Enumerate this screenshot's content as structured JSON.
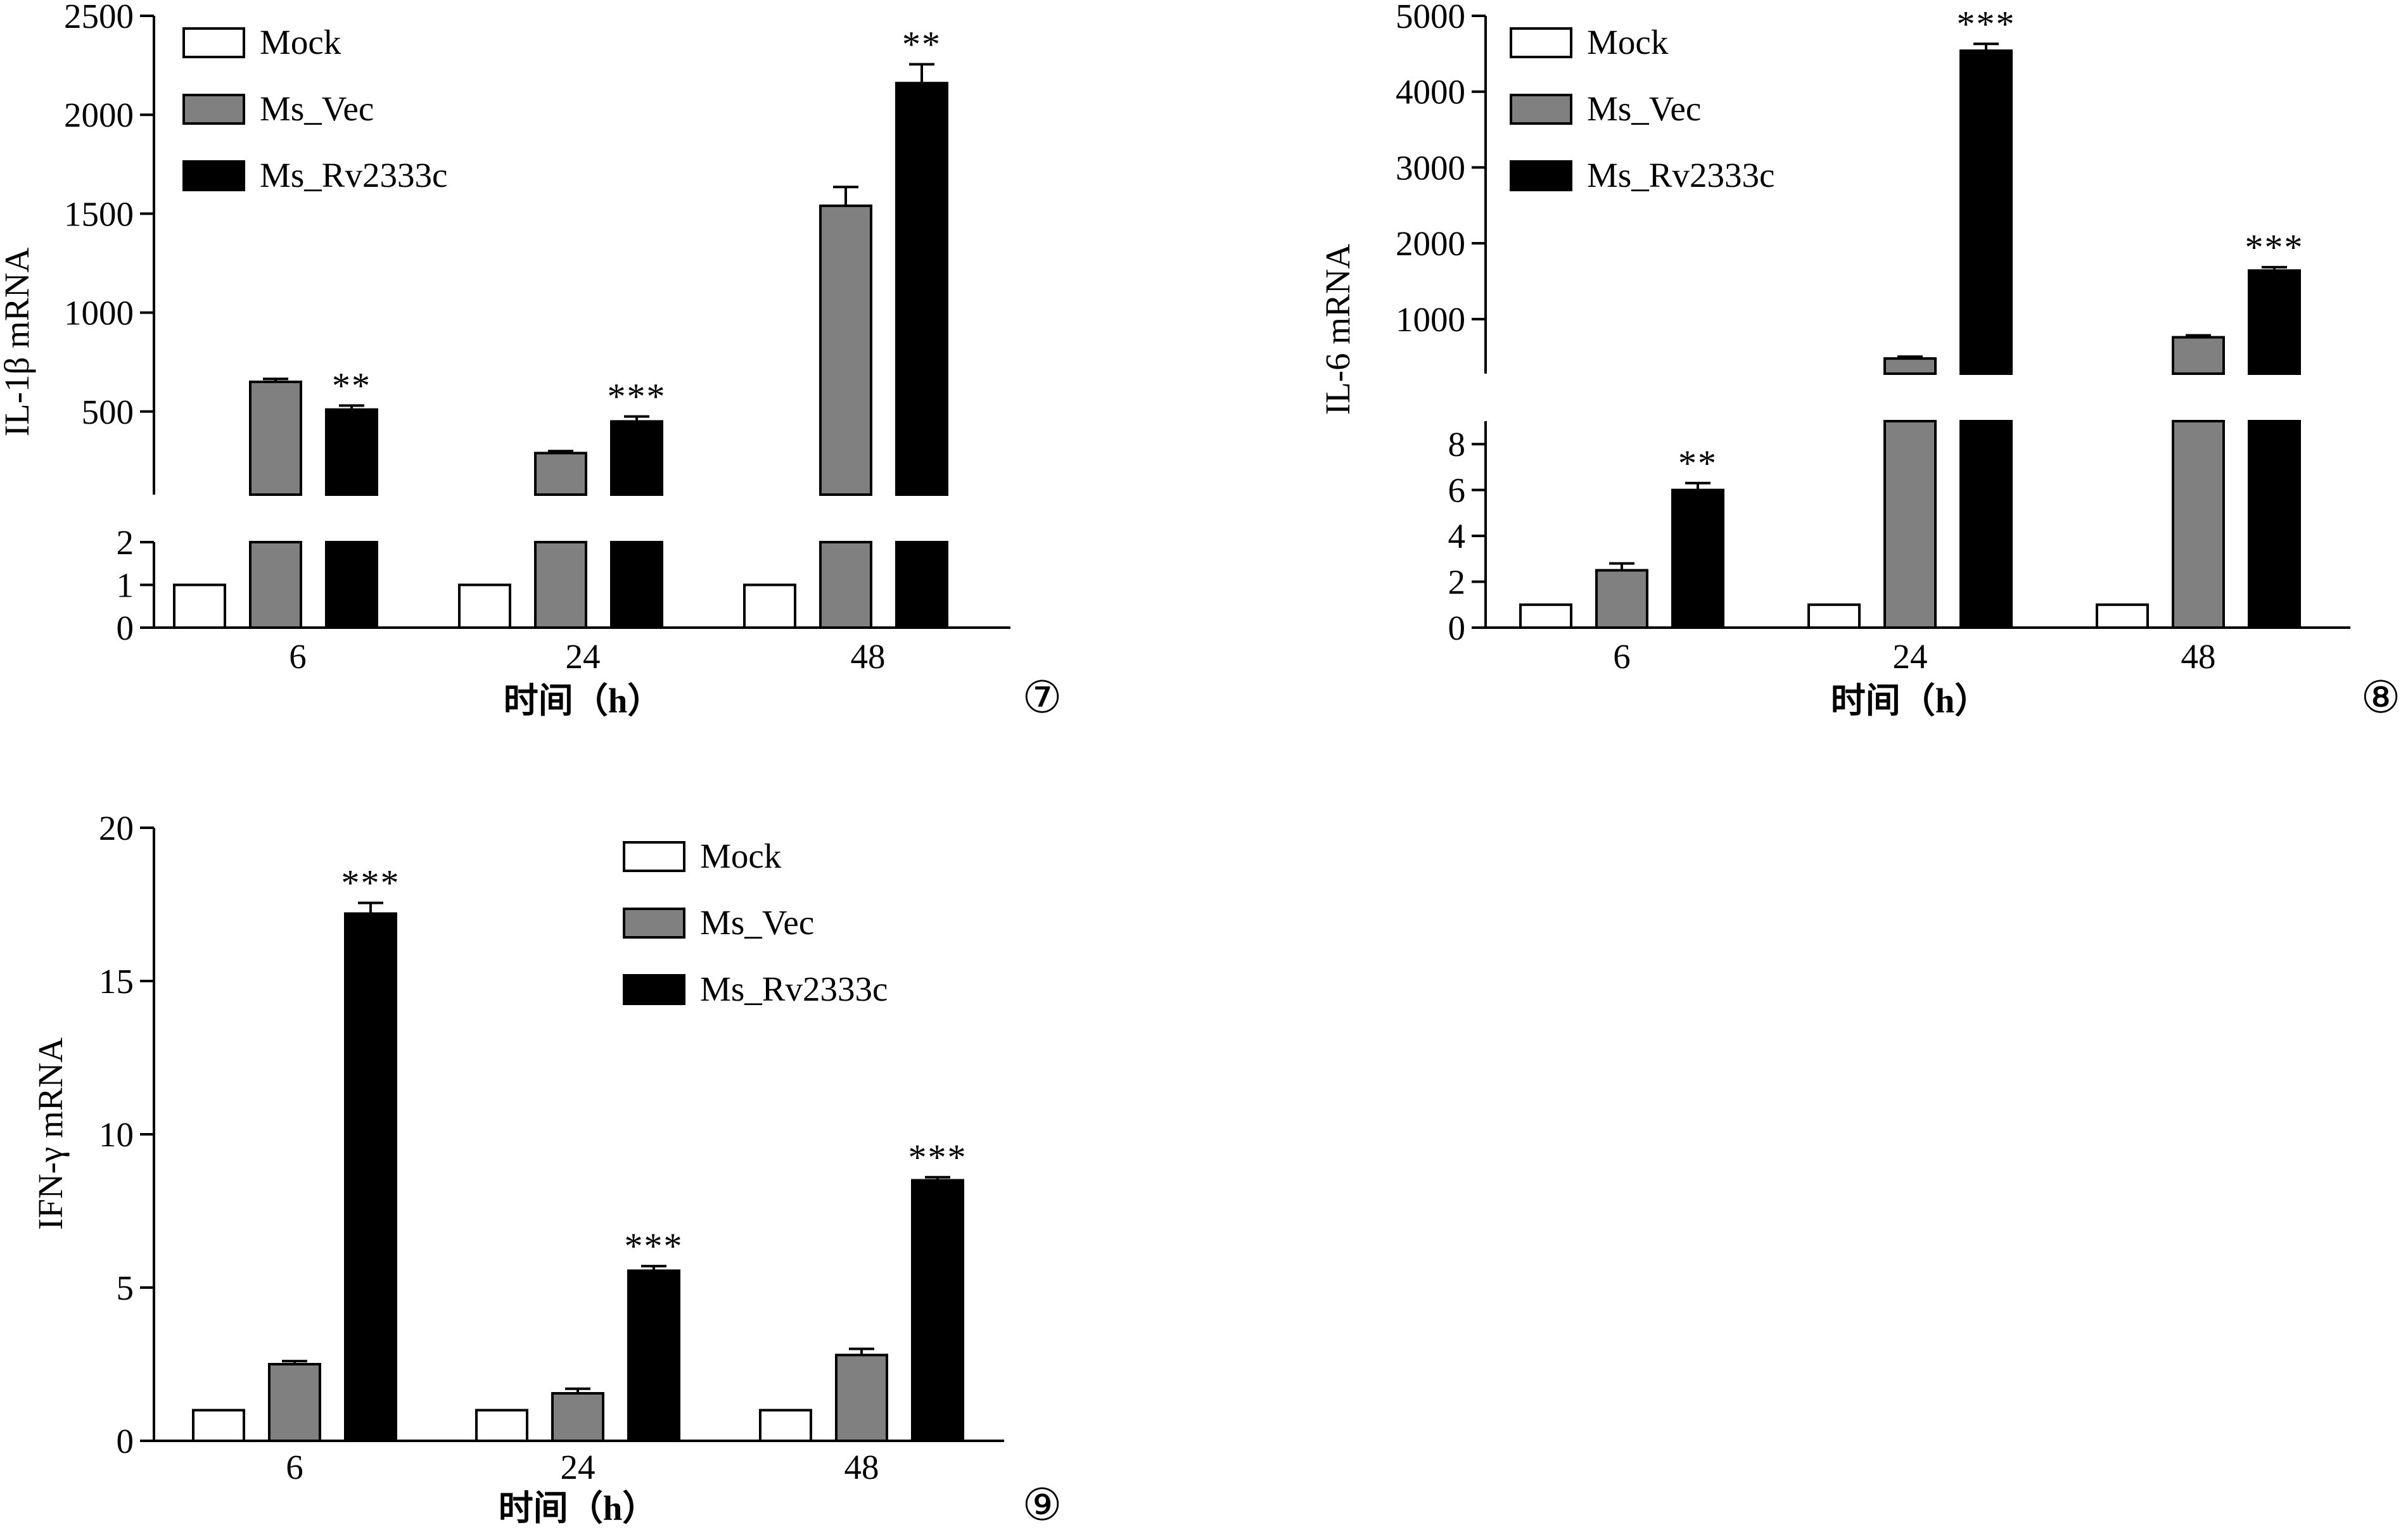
{
  "chart_data": [
    {
      "id": "7",
      "type": "bar",
      "panel_label": "⑦",
      "ylabel": "IL-1β mRNA",
      "xlabel": "时间（h）",
      "categories": [
        "6",
        "24",
        "48"
      ],
      "broken_axis": true,
      "lower_ylim": [
        0,
        2
      ],
      "lower_ticks": [
        "0",
        "1",
        "2"
      ],
      "upper_ylim": [
        80,
        2500
      ],
      "upper_ticks": [
        "500",
        "1000",
        "1500",
        "2000",
        "2500"
      ],
      "series": [
        {
          "name": "Mock",
          "color": "#ffffff",
          "values": [
            1,
            1,
            1
          ],
          "errors": [
            0,
            0,
            0
          ]
        },
        {
          "name": "Ms_Vec",
          "color": "#808080",
          "values": [
            650,
            290,
            1540
          ],
          "errors": [
            15,
            10,
            95
          ]
        },
        {
          "name": "Ms_Rv2333c",
          "color": "#000000",
          "values": [
            510,
            450,
            2160
          ],
          "errors": [
            20,
            25,
            95
          ]
        }
      ],
      "annotations": [
        {
          "series": 2,
          "category": 0,
          "text": "**"
        },
        {
          "series": 2,
          "category": 1,
          "text": "***"
        },
        {
          "series": 2,
          "category": 2,
          "text": "**"
        }
      ],
      "legend": [
        "Mock",
        "Ms_Vec",
        "Ms_Rv2333c"
      ],
      "legend_position": "top-left"
    },
    {
      "id": "8",
      "type": "bar",
      "panel_label": "⑧",
      "ylabel": "IL-6 mRNA",
      "xlabel": "时间（h）",
      "categories": [
        "6",
        "24",
        "48"
      ],
      "broken_axis": true,
      "lower_ylim": [
        0,
        9
      ],
      "lower_ticks": [
        "0",
        "2",
        "4",
        "6",
        "8"
      ],
      "upper_ylim": [
        280,
        5000
      ],
      "upper_ticks": [
        "1000",
        "2000",
        "3000",
        "4000",
        "5000"
      ],
      "series": [
        {
          "name": "Mock",
          "color": "#ffffff",
          "values": [
            1,
            1,
            1
          ],
          "errors": [
            0,
            0,
            0
          ]
        },
        {
          "name": "Ms_Vec",
          "color": "#808080",
          "values": [
            2.5,
            480,
            760
          ],
          "errors": [
            0.3,
            25,
            25
          ]
        },
        {
          "name": "Ms_Rv2333c",
          "color": "#000000",
          "values": [
            6,
            4540,
            1640
          ],
          "errors": [
            0.3,
            90,
            45
          ]
        }
      ],
      "annotations": [
        {
          "series": 2,
          "category": 0,
          "text": "**"
        },
        {
          "series": 2,
          "category": 1,
          "text": "***"
        },
        {
          "series": 2,
          "category": 2,
          "text": "***"
        }
      ],
      "legend": [
        "Mock",
        "Ms_Vec",
        "Ms_Rv2333c"
      ],
      "legend_position": "top-left"
    },
    {
      "id": "9",
      "type": "bar",
      "panel_label": "⑨",
      "ylabel": "IFN-γ mRNA",
      "xlabel": "时间（h）",
      "categories": [
        "6",
        "24",
        "48"
      ],
      "broken_axis": false,
      "ylim": [
        0,
        20
      ],
      "yticks": [
        "0",
        "5",
        "10",
        "15",
        "20"
      ],
      "series": [
        {
          "name": "Mock",
          "color": "#ffffff",
          "values": [
            1,
            1,
            1
          ],
          "errors": [
            0,
            0,
            0
          ]
        },
        {
          "name": "Ms_Vec",
          "color": "#808080",
          "values": [
            2.5,
            1.55,
            2.8
          ],
          "errors": [
            0.1,
            0.15,
            0.2
          ]
        },
        {
          "name": "Ms_Rv2333c",
          "color": "#000000",
          "values": [
            17.2,
            5.55,
            8.5
          ],
          "errors": [
            0.35,
            0.15,
            0.1
          ]
        }
      ],
      "annotations": [
        {
          "series": 2,
          "category": 0,
          "text": "***"
        },
        {
          "series": 2,
          "category": 1,
          "text": "***"
        },
        {
          "series": 2,
          "category": 2,
          "text": "***"
        }
      ],
      "legend": [
        "Mock",
        "Ms_Vec",
        "Ms_Rv2333c"
      ],
      "legend_position": "top-center"
    }
  ]
}
